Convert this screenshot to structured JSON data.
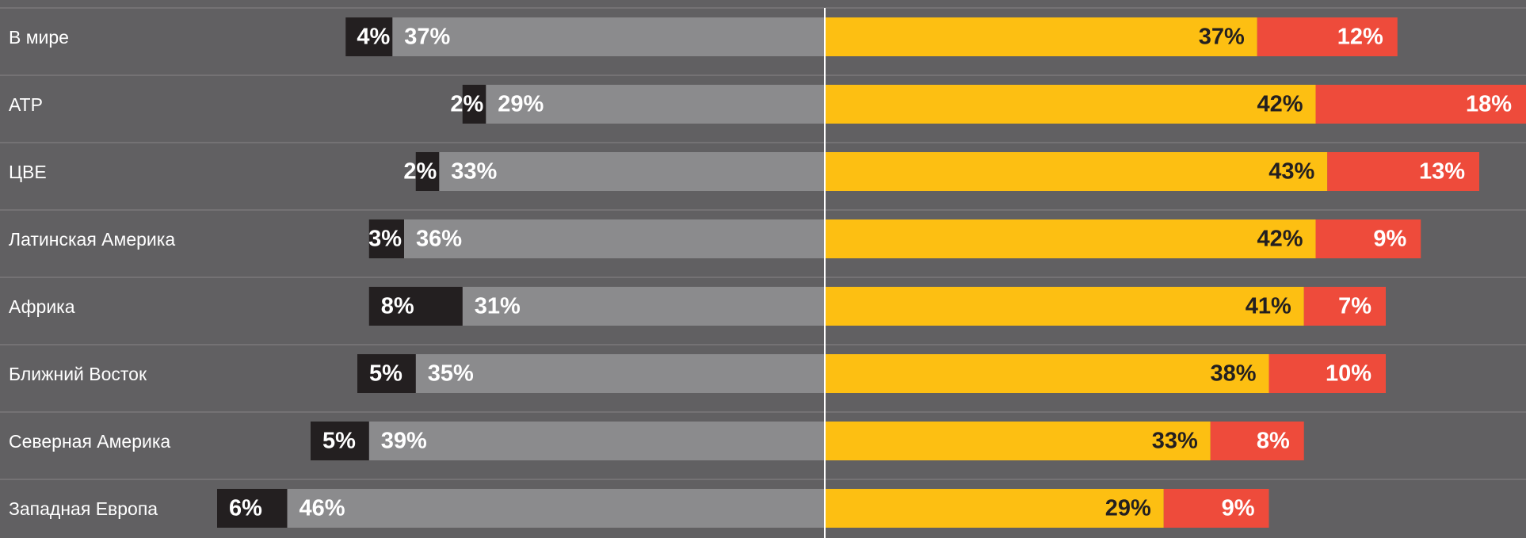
{
  "chart_data": {
    "type": "diverging-bar",
    "categories": [
      "В мире",
      "АТР",
      "ЦВЕ",
      "Латинская Америка",
      "Африка",
      "Ближний Восток",
      "Северная Америка",
      "Западная Европа"
    ],
    "series": [
      {
        "color": "#231f20",
        "values": [
          4,
          2,
          2,
          3,
          8,
          5,
          5,
          6
        ],
        "value_labels": [
          "4%",
          "2%",
          "2%",
          "3%",
          "8%",
          "5%",
          "5%",
          "6%"
        ]
      },
      {
        "color": "#8b8b8d",
        "values": [
          37,
          29,
          33,
          36,
          31,
          35,
          39,
          46
        ],
        "value_labels": [
          "37%",
          "29%",
          "33%",
          "36%",
          "31%",
          "35%",
          "39%",
          "46%"
        ]
      },
      {
        "color": "#fdbf12",
        "values": [
          37,
          42,
          43,
          42,
          41,
          38,
          33,
          29
        ],
        "value_labels": [
          "37%",
          "42%",
          "43%",
          "42%",
          "41%",
          "38%",
          "33%",
          "29%"
        ]
      },
      {
        "color": "#ee4b3b",
        "values": [
          12,
          18,
          13,
          9,
          7,
          10,
          8,
          9
        ],
        "value_labels": [
          "12%",
          "18%",
          "13%",
          "9%",
          "7%",
          "10%",
          "8%",
          "9%"
        ]
      }
    ]
  }
}
